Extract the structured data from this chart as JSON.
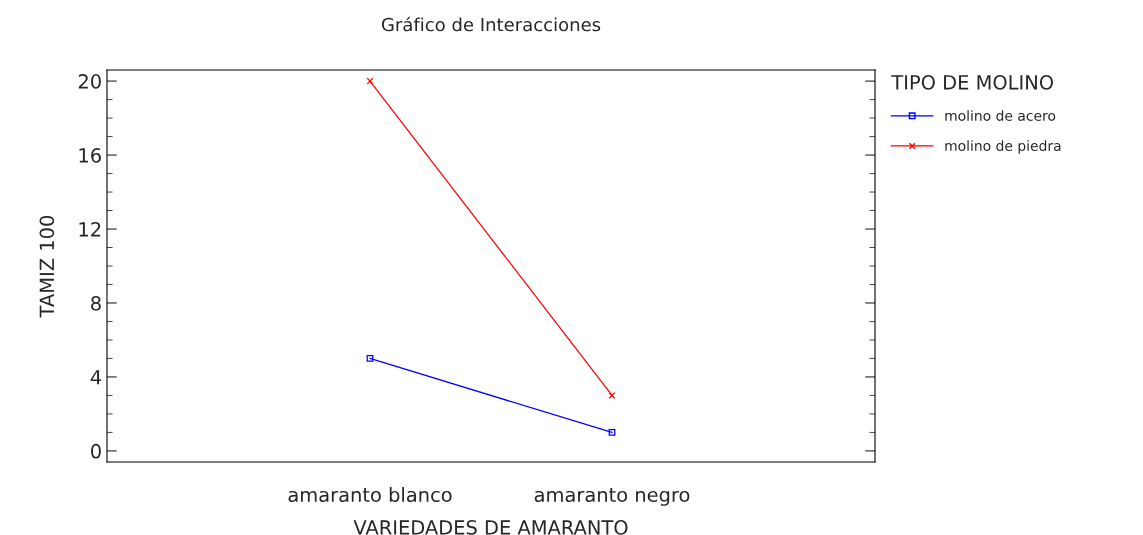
{
  "chart_data": {
    "type": "line",
    "title": "Gráfico de Interacciones",
    "xlabel": "VARIEDADES DE AMARANTO",
    "ylabel": "TAMIZ 100",
    "legend_title": "TIPO DE MOLINO",
    "categories": [
      "amaranto blanco",
      "amaranto negro"
    ],
    "series": [
      {
        "name": "molino de acero",
        "color": "#0000ff",
        "marker": "square",
        "values": [
          5,
          1
        ]
      },
      {
        "name": "molino de piedra",
        "color": "#ff0000",
        "marker": "cross",
        "values": [
          20,
          3
        ]
      }
    ],
    "ylim": [
      -0.6,
      20.6
    ],
    "yticks": [
      0,
      4,
      8,
      12,
      16,
      20
    ],
    "grid": false,
    "legend": "top right",
    "line_style": "solid"
  }
}
